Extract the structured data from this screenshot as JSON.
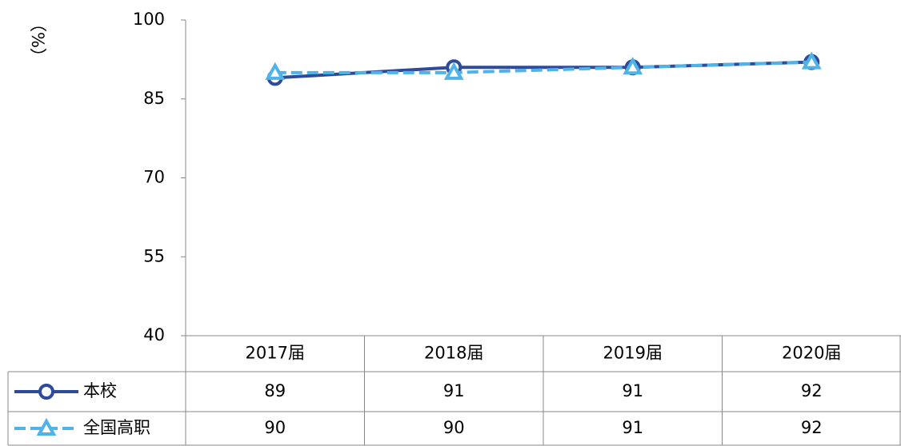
{
  "chart_data": {
    "type": "line",
    "y_label": "（%）",
    "categories": [
      "2017届",
      "2018届",
      "2019届",
      "2020届"
    ],
    "series": [
      {
        "name": "本校",
        "color": "#2e4a9a",
        "dashed": false,
        "marker": "circle",
        "values": [
          89,
          91,
          91,
          92
        ]
      },
      {
        "name": "全国高职",
        "color": "#4fb3e8",
        "dashed": true,
        "marker": "triangle",
        "values": [
          90,
          90,
          91,
          92
        ]
      }
    ],
    "ylim": [
      40,
      100
    ],
    "yticks": [
      40,
      55,
      70,
      85,
      100
    ],
    "grid": false,
    "data_table": true
  }
}
